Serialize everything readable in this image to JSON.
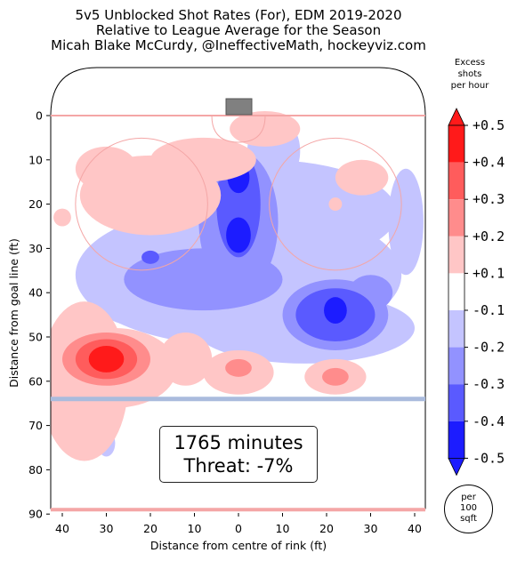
{
  "title": {
    "line1": "5v5 Unblocked Shot Rates (For), EDM 2019-2020",
    "line2": "Relative to League Average for the Season",
    "line3": "Micah Blake McCurdy, @IneffectiveMath, hockeyviz.com"
  },
  "colorbar": {
    "title_line1": "Excess",
    "title_line2": "shots",
    "title_line3": "per hour",
    "labels": [
      "+0.5",
      "+0.4",
      "+0.3",
      "+0.2",
      "+0.1",
      "-0.1",
      "-0.2",
      "-0.3",
      "-0.4",
      "-0.5"
    ],
    "colors": {
      "pos5": "#ff1a1a",
      "pos4": "#ff5c5c",
      "pos3": "#ff8c8c",
      "pos2": "#ffc6c6",
      "neutral": "#ffffff",
      "neg2": "#c4c4ff",
      "neg3": "#9292ff",
      "neg4": "#5a5aff",
      "neg5": "#1c1cff"
    }
  },
  "info": {
    "minutes": "1765 minutes",
    "threat": "Threat: -7%"
  },
  "units": {
    "line1": "per",
    "line2": "100",
    "line3": "sqft"
  },
  "chart_data": {
    "type": "heatmap",
    "title": "5v5 Unblocked Shot Rates (For), EDM 2019-2020",
    "xlabel": "Distance from centre of rink (ft)",
    "ylabel": "Distance from goal line (ft)",
    "xlim": [
      42.5,
      -42.5
    ],
    "ylim": [
      90,
      -11
    ],
    "x_ticks": [
      40,
      30,
      20,
      10,
      0,
      10,
      20,
      30,
      40
    ],
    "y_ticks": [
      0,
      10,
      20,
      30,
      40,
      50,
      60,
      70,
      80,
      90
    ],
    "grid": false,
    "colorbar_range": [
      -0.5,
      0.5
    ],
    "threat_pct": -7,
    "minutes": 1765,
    "regions": [
      {
        "label": "left slot cluster",
        "x": -21,
        "y": 20,
        "value": 0.2
      },
      {
        "label": "crease right",
        "x": 4,
        "y": 4,
        "value": 0.2
      },
      {
        "label": "left point",
        "x": -28,
        "y": 55,
        "value": 0.5
      },
      {
        "label": "high slot dark blue",
        "x": 0,
        "y": 14,
        "value": -0.5
      },
      {
        "label": "slot dark blue",
        "x": 0,
        "y": 27,
        "value": -0.5
      },
      {
        "label": "right faceoff low",
        "x": 22,
        "y": 44,
        "value": -0.5
      },
      {
        "label": "slot band",
        "x": 0,
        "y": 35,
        "value": -0.2
      },
      {
        "label": "right point light red",
        "x": 22,
        "y": 58,
        "value": 0.2
      },
      {
        "label": "middle point",
        "x": -3,
        "y": 57,
        "value": 0.3
      },
      {
        "label": "left small red",
        "x": -40,
        "y": 23,
        "value": 0.2
      },
      {
        "label": "left bottom blue",
        "x": -30,
        "y": 74,
        "value": -0.2
      }
    ]
  }
}
